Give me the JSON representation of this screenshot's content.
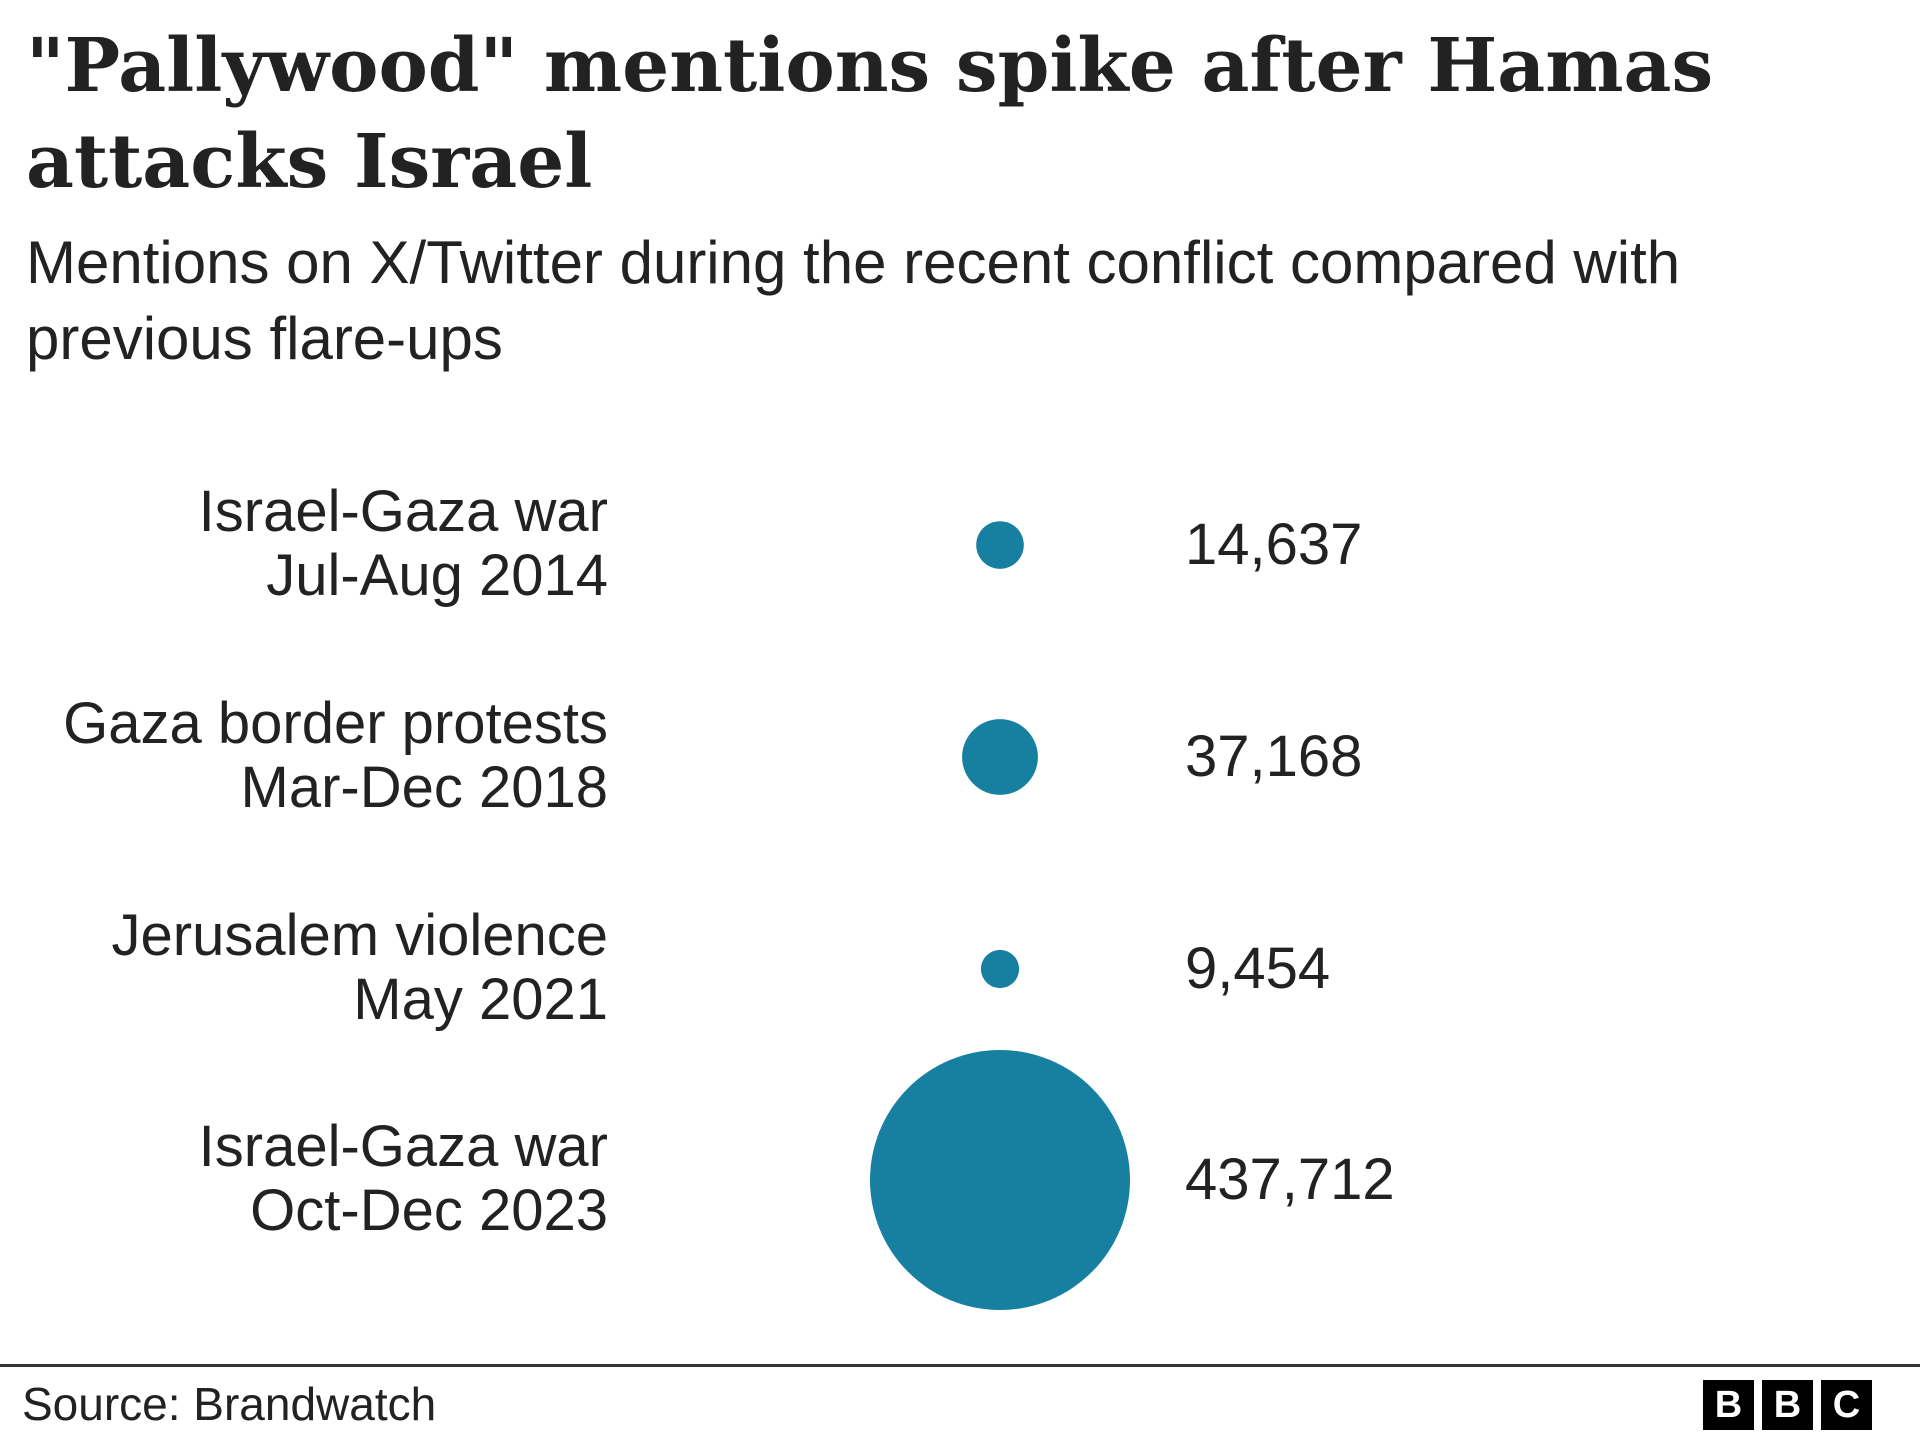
{
  "colors": {
    "bubble": "#1780a1",
    "text": "#222222",
    "rule": "#333333"
  },
  "footer": {
    "source": "Source: Brandwatch",
    "logo_letters": [
      "B",
      "B",
      "C"
    ]
  },
  "chart_data": {
    "type": "bubble",
    "title": "\"Pallywood\" mentions spike after Hamas attacks Israel",
    "subtitle": "Mentions on X/Twitter during the recent conflict compared with previous flare-ups",
    "xlabel": "",
    "ylabel": "",
    "unit": "mentions",
    "series": [
      {
        "name": "Mentions",
        "categories": [
          {
            "line1": "Israel-Gaza war",
            "line2": "Jul-Aug 2014",
            "value": 14637,
            "value_label": "14,637"
          },
          {
            "line1": "Gaza border protests",
            "line2": "Mar-Dec 2018",
            "value": 37168,
            "value_label": "37,168"
          },
          {
            "line1": "Jerusalem violence",
            "line2": "May 2021",
            "value": 9454,
            "value_label": "9,454"
          },
          {
            "line1": "Israel-Gaza war",
            "line2": "Oct-Dec 2023",
            "value": 437712,
            "value_label": "437,712"
          }
        ]
      }
    ]
  }
}
